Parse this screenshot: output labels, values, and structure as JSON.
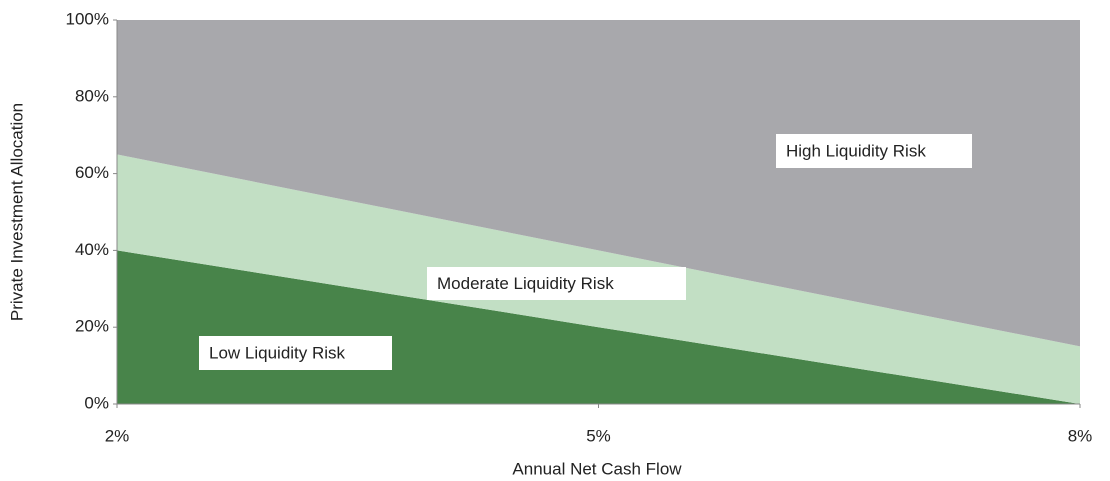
{
  "chart_data": {
    "type": "stacked_area",
    "x": [
      2,
      5,
      8
    ],
    "series": [
      {
        "name": "Low Liquidity Risk",
        "color": "#48844a",
        "values": [
          40,
          20,
          0
        ]
      },
      {
        "name": "Moderate Liquidity Risk",
        "color": "#c2dfc4",
        "values": [
          25,
          20,
          15
        ]
      },
      {
        "name": "High Liquidity Risk",
        "color": "#a8a8ac",
        "values": [
          35,
          60,
          85
        ]
      }
    ],
    "xlim": [
      2,
      8
    ],
    "xticks": [
      {
        "value": 2,
        "label": "2%"
      },
      {
        "value": 5,
        "label": "5%"
      },
      {
        "value": 8,
        "label": "8%"
      }
    ],
    "ylim": [
      0,
      100
    ],
    "yticks": [
      {
        "value": 0,
        "label": "0%"
      },
      {
        "value": 20,
        "label": "20%"
      },
      {
        "value": 40,
        "label": "40%"
      },
      {
        "value": 60,
        "label": "60%"
      },
      {
        "value": 80,
        "label": "80%"
      },
      {
        "value": 100,
        "label": "100%"
      }
    ],
    "x_label": "Annual Net Cash Flow",
    "y_label": "Private Investment Allocation"
  }
}
